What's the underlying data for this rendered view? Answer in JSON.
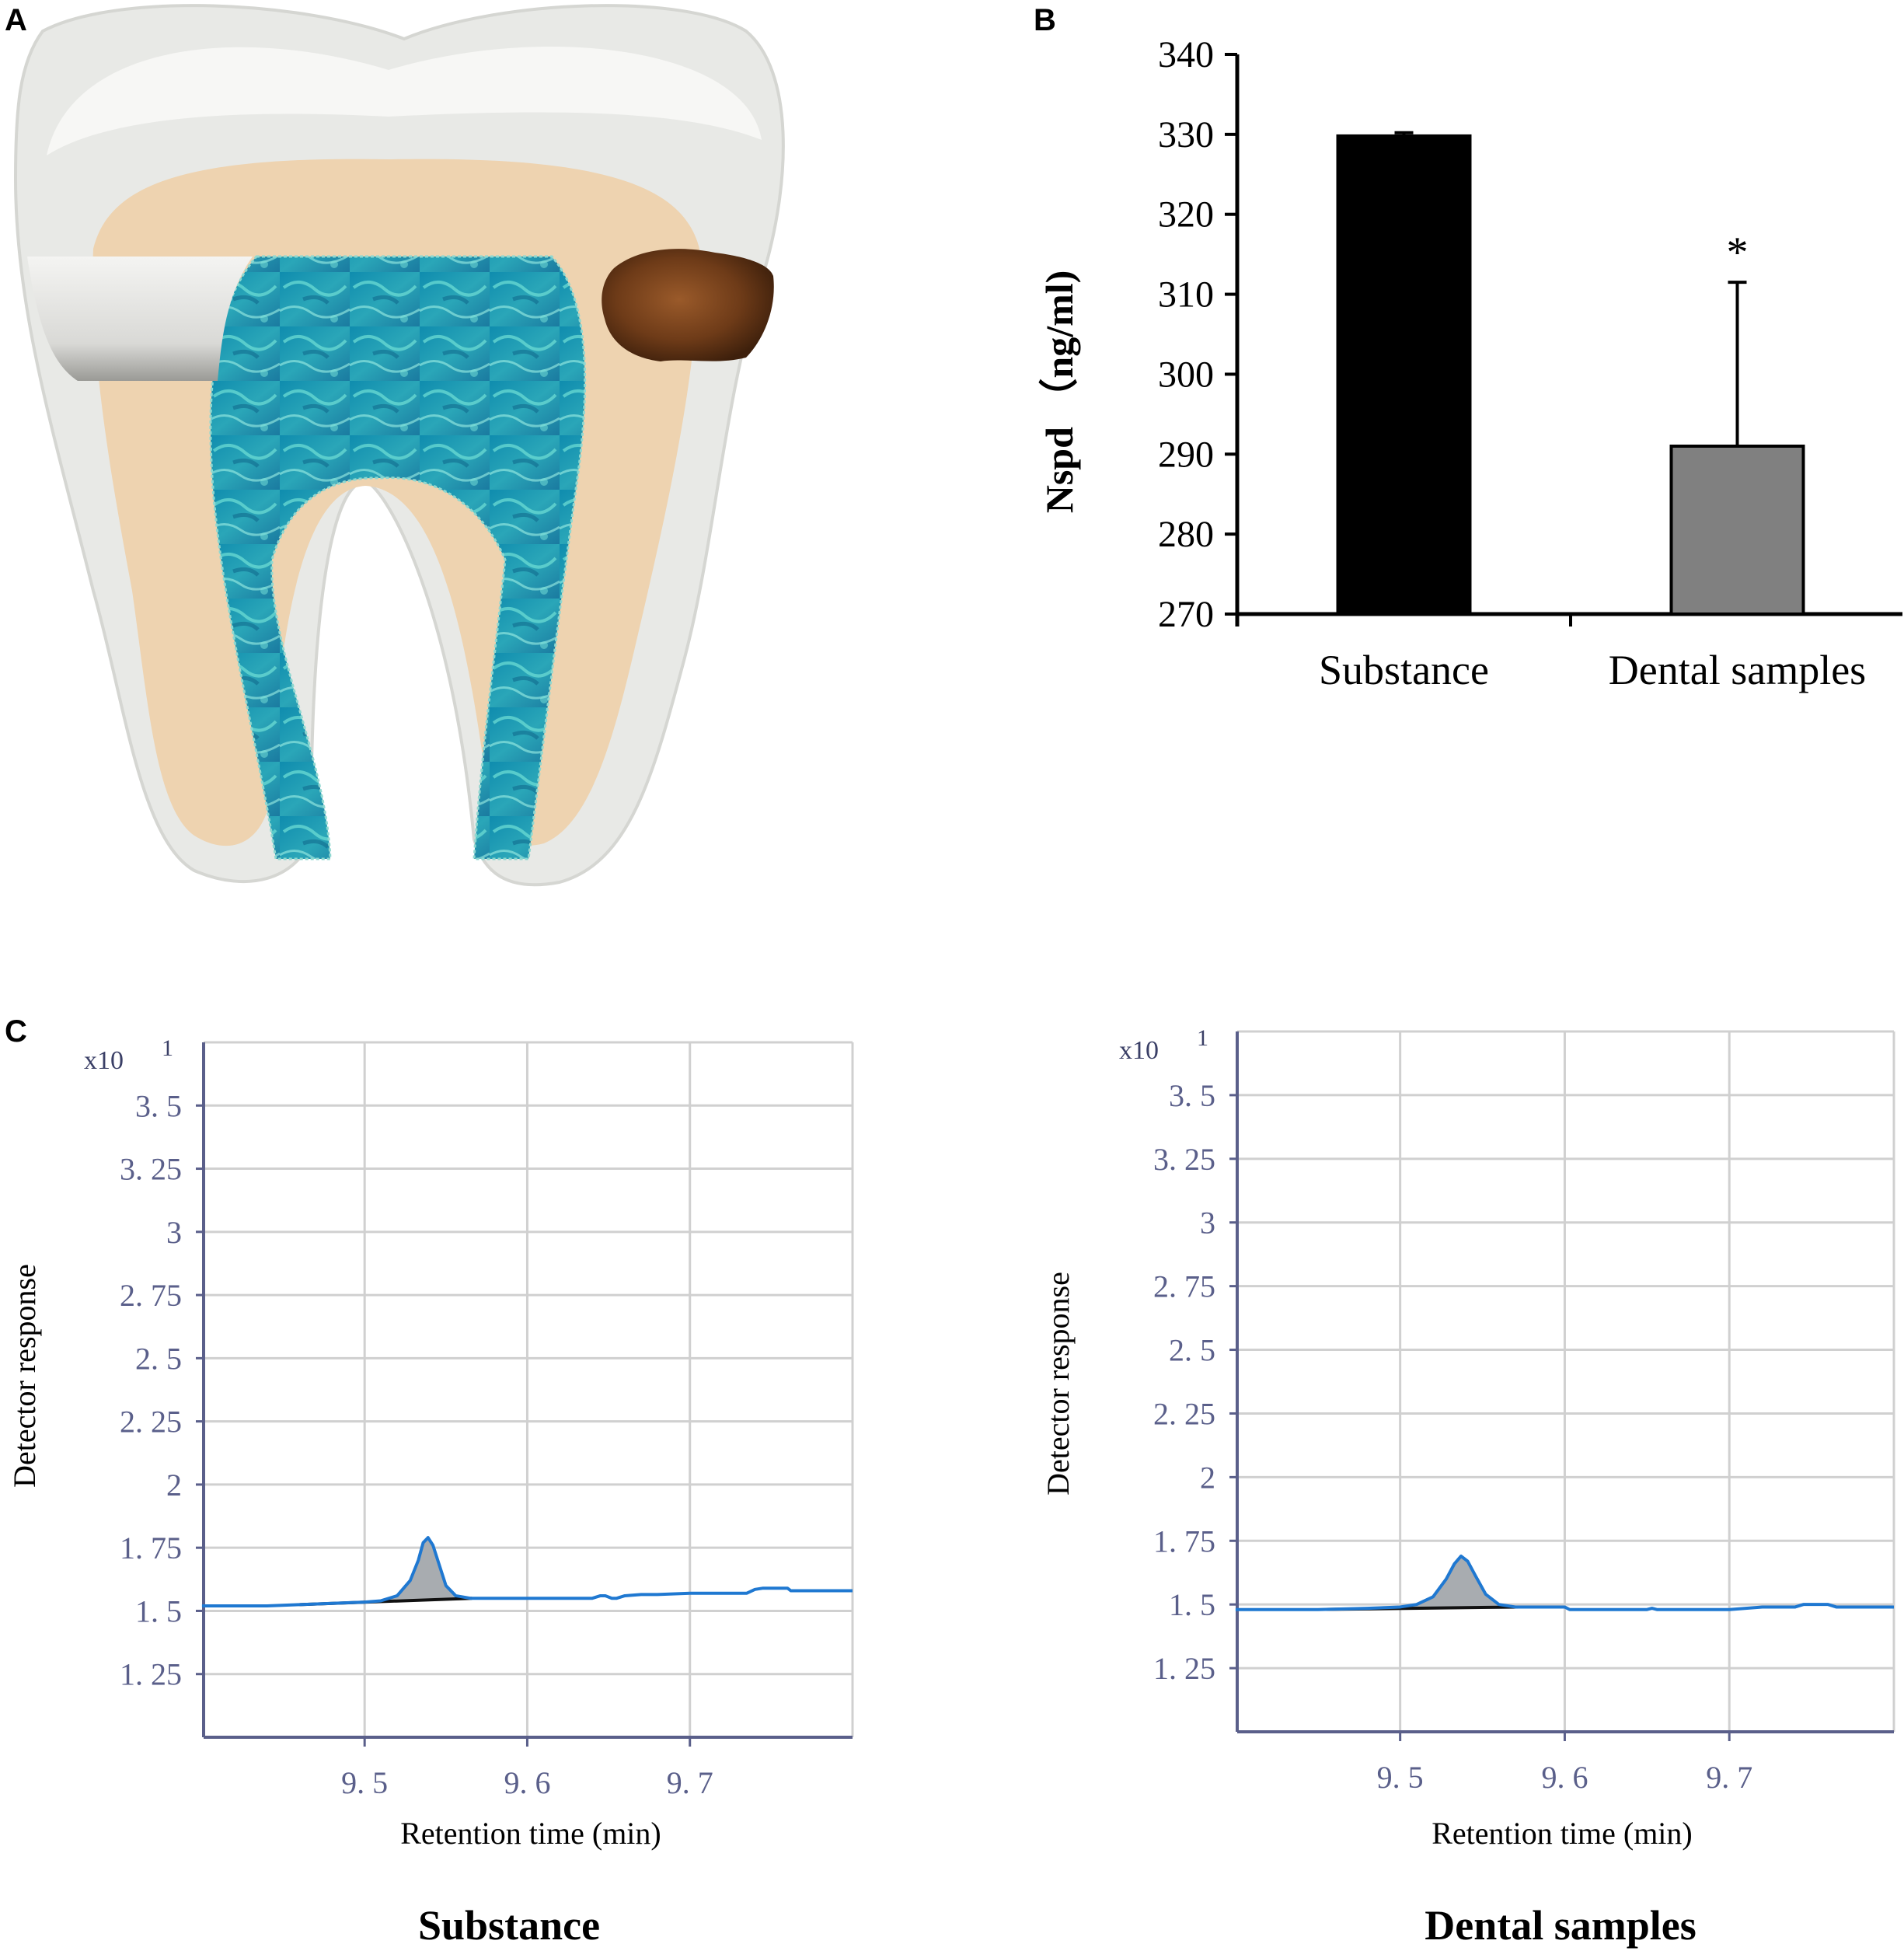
{
  "panels": {
    "a": "A",
    "b": "B",
    "c": "C"
  },
  "colors": {
    "bar_substance": "#000000",
    "bar_dental": "#808080",
    "trace": "#1f78d1",
    "peak_fill": "#a8acb0",
    "axis_c": "#5a5f8a",
    "grid": "#d0d0d0"
  },
  "chart_data": [
    {
      "type": "bar",
      "panel": "B",
      "categories": [
        "Substance",
        "Dental samples"
      ],
      "values": [
        329.8,
        291
      ],
      "error_upper": [
        0.4,
        20.5
      ],
      "ylabel": "Nspd （ng/ml)",
      "ylim": [
        270,
        340
      ],
      "yticks": [
        270,
        280,
        290,
        300,
        310,
        320,
        330,
        340
      ],
      "annotations": [
        {
          "category": "Dental samples",
          "text": "*"
        }
      ]
    },
    {
      "type": "line",
      "panel": "C",
      "title": "Substance",
      "xlabel": "Retention time (min)",
      "ylabel": "Detector response",
      "y_multiplier": "x10",
      "y_exponent": "1",
      "xlim": [
        9.401,
        9.8
      ],
      "ylim": [
        1.0,
        3.75
      ],
      "xticks": [
        {
          "v": 9.5,
          "t": "9. 5"
        },
        {
          "v": 9.6,
          "t": "9. 6"
        },
        {
          "v": 9.7,
          "t": "9. 7"
        }
      ],
      "yticks": [
        {
          "v": 1.25,
          "t": "1. 25"
        },
        {
          "v": 1.5,
          "t": "1. 5"
        },
        {
          "v": 1.75,
          "t": "1. 75"
        },
        {
          "v": 2.0,
          "t": "2"
        },
        {
          "v": 2.25,
          "t": "2. 25"
        },
        {
          "v": 2.5,
          "t": "2. 5"
        },
        {
          "v": 2.75,
          "t": "2. 75"
        },
        {
          "v": 3.0,
          "t": "3"
        },
        {
          "v": 3.25,
          "t": "3. 25"
        },
        {
          "v": 3.5,
          "t": "3. 5"
        }
      ],
      "x": [
        9.4,
        9.44,
        9.46,
        9.48,
        9.5,
        9.51,
        9.52,
        9.528,
        9.533,
        9.536,
        9.539,
        9.542,
        9.546,
        9.55,
        9.556,
        9.565,
        9.58,
        9.6,
        9.64,
        9.645,
        9.648,
        9.652,
        9.655,
        9.66,
        9.67,
        9.68,
        9.7,
        9.735,
        9.74,
        9.745,
        9.76,
        9.762,
        9.8
      ],
      "y": [
        1.52,
        1.52,
        1.525,
        1.53,
        1.535,
        1.54,
        1.56,
        1.62,
        1.7,
        1.77,
        1.79,
        1.76,
        1.68,
        1.6,
        1.56,
        1.55,
        1.55,
        1.55,
        1.55,
        1.56,
        1.56,
        1.55,
        1.55,
        1.56,
        1.565,
        1.565,
        1.57,
        1.57,
        1.585,
        1.59,
        1.59,
        1.58,
        1.58
      ],
      "peak_range": [
        9.46,
        9.566
      ]
    },
    {
      "type": "line",
      "panel": "C",
      "title": "Dental samples",
      "xlabel": "Retention time (min)",
      "ylabel": "Detector response",
      "y_multiplier": "x10",
      "y_exponent": "1",
      "xlim": [
        9.401,
        9.8
      ],
      "ylim": [
        1.0,
        3.75
      ],
      "xticks": [
        {
          "v": 9.5,
          "t": "9. 5"
        },
        {
          "v": 9.6,
          "t": "9. 6"
        },
        {
          "v": 9.7,
          "t": "9. 7"
        }
      ],
      "yticks": [
        {
          "v": 1.25,
          "t": "1. 25"
        },
        {
          "v": 1.5,
          "t": "1. 5"
        },
        {
          "v": 1.75,
          "t": "1. 75"
        },
        {
          "v": 2.0,
          "t": "2"
        },
        {
          "v": 2.25,
          "t": "2. 25"
        },
        {
          "v": 2.5,
          "t": "2. 5"
        },
        {
          "v": 2.75,
          "t": "2. 75"
        },
        {
          "v": 3.0,
          "t": "3"
        },
        {
          "v": 3.25,
          "t": "3. 25"
        },
        {
          "v": 3.5,
          "t": "3. 5"
        }
      ],
      "x": [
        9.4,
        9.45,
        9.48,
        9.5,
        9.51,
        9.52,
        9.528,
        9.533,
        9.537,
        9.541,
        9.546,
        9.552,
        9.56,
        9.57,
        9.6,
        9.603,
        9.606,
        9.65,
        9.653,
        9.656,
        9.7,
        9.72,
        9.74,
        9.745,
        9.76,
        9.765,
        9.8
      ],
      "y": [
        1.48,
        1.48,
        1.485,
        1.49,
        1.5,
        1.53,
        1.6,
        1.66,
        1.69,
        1.67,
        1.61,
        1.54,
        1.5,
        1.49,
        1.49,
        1.48,
        1.48,
        1.48,
        1.485,
        1.48,
        1.48,
        1.49,
        1.49,
        1.5,
        1.5,
        1.49,
        1.49
      ],
      "peak_range": [
        9.455,
        9.572
      ]
    }
  ]
}
